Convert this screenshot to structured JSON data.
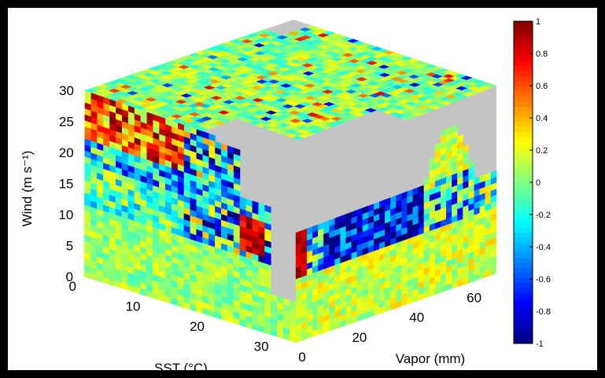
{
  "chart_data": {
    "type": "heatmap",
    "title": "",
    "subtitle": "",
    "projection": "3d-cube",
    "axes": {
      "wind": {
        "label": "Wind (m s⁻¹)",
        "ticks": [
          0,
          5,
          10,
          15,
          20,
          25,
          30
        ],
        "range": [
          0,
          30
        ]
      },
      "sst": {
        "label": "SST (°C)",
        "ticks": [
          0,
          10,
          20,
          30
        ],
        "range": [
          0,
          33
        ]
      },
      "vapor": {
        "label": "Vapor (mm)",
        "ticks": [
          0,
          20,
          40,
          60
        ],
        "range": [
          0,
          70
        ]
      }
    },
    "colorbar": {
      "colormap": "jet",
      "range": [
        -1,
        1
      ],
      "ticks": [
        "1",
        "0.8",
        "0.6",
        "0.4",
        "0.2",
        "0",
        "-0.2",
        "-0.4",
        "-0.6",
        "-0.8",
        "-1"
      ]
    },
    "missing_color": "#c4c4c4",
    "faces": {
      "sst_vs_wind": {
        "x_axis": "sst",
        "y_axis": "wind",
        "bins": [
          34,
          31
        ],
        "description_values": "mostly near 0 (cyan/green) at low wind; strong positive (~0.8–1) at high wind for SST 5–22 °C, mixed strong negative (-0.6 to -1) around wind 12–22; no data at high wind for SST > 24"
      },
      "vapor_vs_wind": {
        "x_axis": "vapor",
        "y_axis": "wind",
        "bins": [
          36,
          31
        ],
        "description_values": "near 0 to slightly positive (~0.1–0.3) at low wind; strong negative (-0.8 to -1) for vapor 10–45 mm at wind 12–18; strong positive (~0.9) at vapor 0–3 mm, wind 12–17"
      },
      "sst_vs_vapor_top": {
        "x_axis": "sst",
        "y_axis": "vapor",
        "bins": [
          34,
          36
        ],
        "description_values": "mostly 0 to 0.2 (cyan/green) with scattered 0.4–0.8 cells; missing data at high SST & low vapor"
      }
    }
  }
}
